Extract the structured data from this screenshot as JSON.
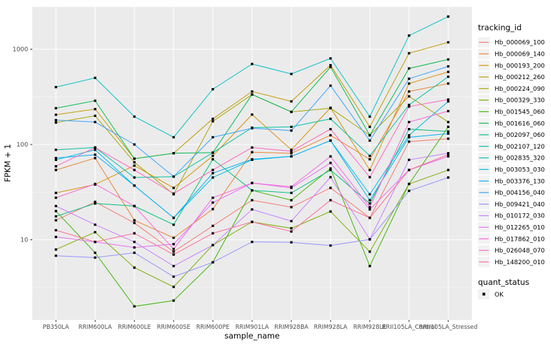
{
  "chart_data": {
    "type": "line",
    "title": "",
    "xlabel": "sample_name",
    "ylabel": "FPKM + 1",
    "y_scale": "log10",
    "y_ticks": [
      10,
      100,
      1000
    ],
    "y_tick_labels": [
      "10",
      "100",
      "1000"
    ],
    "y_minor_ticks": [
      3.162,
      31.62,
      316.2
    ],
    "ylim": [
      1.8,
      2600
    ],
    "grid": true,
    "legend_position": "right",
    "legend_title": "tracking_id",
    "marker": "black-square",
    "categories": [
      "PB350LA",
      "RRIM600LA",
      "RRIM600LE",
      "RRIM600SE",
      "RRIM600PE",
      "RRIM901LA",
      "RRIM928BA",
      "RRIM928LA",
      "RRIM928LE",
      "RRII105LA_Control",
      "RRII105LA_Stressed"
    ],
    "series": [
      {
        "name": "Hb_000069_100",
        "color": "#F8766D",
        "values": [
          16,
          25,
          15,
          7.5,
          14,
          26,
          22,
          35,
          17,
          107,
          115
        ]
      },
      {
        "name": "Hb_000069_140",
        "color": "#EA8331",
        "values": [
          54,
          72,
          16,
          10.5,
          21,
          83,
          81,
          125,
          70,
          360,
          436
        ]
      },
      {
        "name": "Hb_000193_200",
        "color": "#D89000",
        "values": [
          31,
          38,
          60,
          35,
          76,
          206,
          88,
          243,
          54,
          436,
          578
        ]
      },
      {
        "name": "Hb_000212_260",
        "color": "#C09B00",
        "values": [
          205,
          235,
          71,
          81,
          186,
          360,
          283,
          680,
          153,
          906,
          1180
        ]
      },
      {
        "name": "Hb_000224_090",
        "color": "#A3A500",
        "values": [
          170,
          200,
          65,
          30,
          175,
          335,
          220,
          240,
          125,
          320,
          172
        ]
      },
      {
        "name": "Hb_000329_330",
        "color": "#7CAE00",
        "values": [
          7.9,
          12,
          5.1,
          3.2,
          8.8,
          15.4,
          13.2,
          19.8,
          7.5,
          38.5,
          54
        ]
      },
      {
        "name": "Hb_001545_060",
        "color": "#39B600",
        "values": [
          20,
          7.3,
          2.0,
          2.3,
          5.8,
          33,
          26,
          56,
          5.3,
          38.5,
          153
        ]
      },
      {
        "name": "Hb_001616_060",
        "color": "#00BB4E",
        "values": [
          240,
          288,
          71,
          81,
          82,
          335,
          220,
          650,
          125,
          628,
          780
        ]
      },
      {
        "name": "Hb_002097_060",
        "color": "#00BF7D",
        "values": [
          17.6,
          24,
          22.6,
          14.4,
          70,
          33,
          31,
          54,
          24,
          145,
          137
        ]
      },
      {
        "name": "Hb_002107_120",
        "color": "#00C1A3",
        "values": [
          88,
          93,
          45,
          46,
          82,
          150,
          153,
          186,
          76,
          260,
          514
        ]
      },
      {
        "name": "Hb_002835_320",
        "color": "#00BFC4",
        "values": [
          400,
          500,
          196,
          119,
          380,
          700,
          550,
          800,
          196,
          1390,
          2200
        ]
      },
      {
        "name": "Hb_003053_030",
        "color": "#00BAE0",
        "values": [
          69,
          88,
          37,
          17,
          45,
          69,
          75,
          110,
          30,
          125,
          283
        ]
      },
      {
        "name": "Hb_003376_130",
        "color": "#00B0F6",
        "values": [
          72,
          78,
          37,
          17,
          50,
          70,
          75,
          110,
          26,
          119,
          130
        ]
      },
      {
        "name": "Hb_004156_040",
        "color": "#35A2FF",
        "values": [
          180,
          172,
          100,
          46,
          119,
          148,
          140,
          414,
          110,
          490,
          660
        ]
      },
      {
        "name": "Hb_009421_040",
        "color": "#9590FF",
        "values": [
          6.8,
          6.5,
          7.3,
          4.1,
          5.8,
          9.5,
          9.4,
          8.7,
          10.1,
          32.6,
          45
        ]
      },
      {
        "name": "Hb_010172_030",
        "color": "#C77CFF",
        "values": [
          22.6,
          14.4,
          9.5,
          5.3,
          8.8,
          20.8,
          15.7,
          45.4,
          10.1,
          69,
          81
        ]
      },
      {
        "name": "Hb_012265_010",
        "color": "#E76BF3",
        "values": [
          10.7,
          9.5,
          8.3,
          9.0,
          24.6,
          39.4,
          35,
          64,
          20.8,
          54,
          75
        ]
      },
      {
        "name": "Hb_017862_010",
        "color": "#FA62DB",
        "values": [
          27.6,
          38.5,
          22.6,
          8,
          27.6,
          39.4,
          36,
          75,
          22,
          172,
          224
        ]
      },
      {
        "name": "Hb_026048_070",
        "color": "#FF62BC",
        "values": [
          59,
          93,
          54,
          30.5,
          54,
          93,
          85,
          145,
          45.4,
          250,
          296
        ]
      },
      {
        "name": "Hb_148200_010",
        "color": "#FF6A98",
        "values": [
          12.6,
          9.5,
          11.7,
          7,
          11.7,
          15.4,
          12.2,
          26,
          17,
          54,
          78
        ]
      }
    ],
    "quant_legend": {
      "title": "quant_status",
      "items": [
        {
          "label": "OK",
          "marker": "black-square"
        }
      ]
    }
  },
  "colors": {
    "panel_background": "#EBEBEB",
    "grid_major": "#FFFFFF",
    "grid_minor": "#FFFFFF",
    "tick_label": "#4D4D4D",
    "axis_title": "#000000",
    "point": "#000000",
    "legend_key_background": "#F2F2F2",
    "figure_background": "#FFFFFF"
  }
}
